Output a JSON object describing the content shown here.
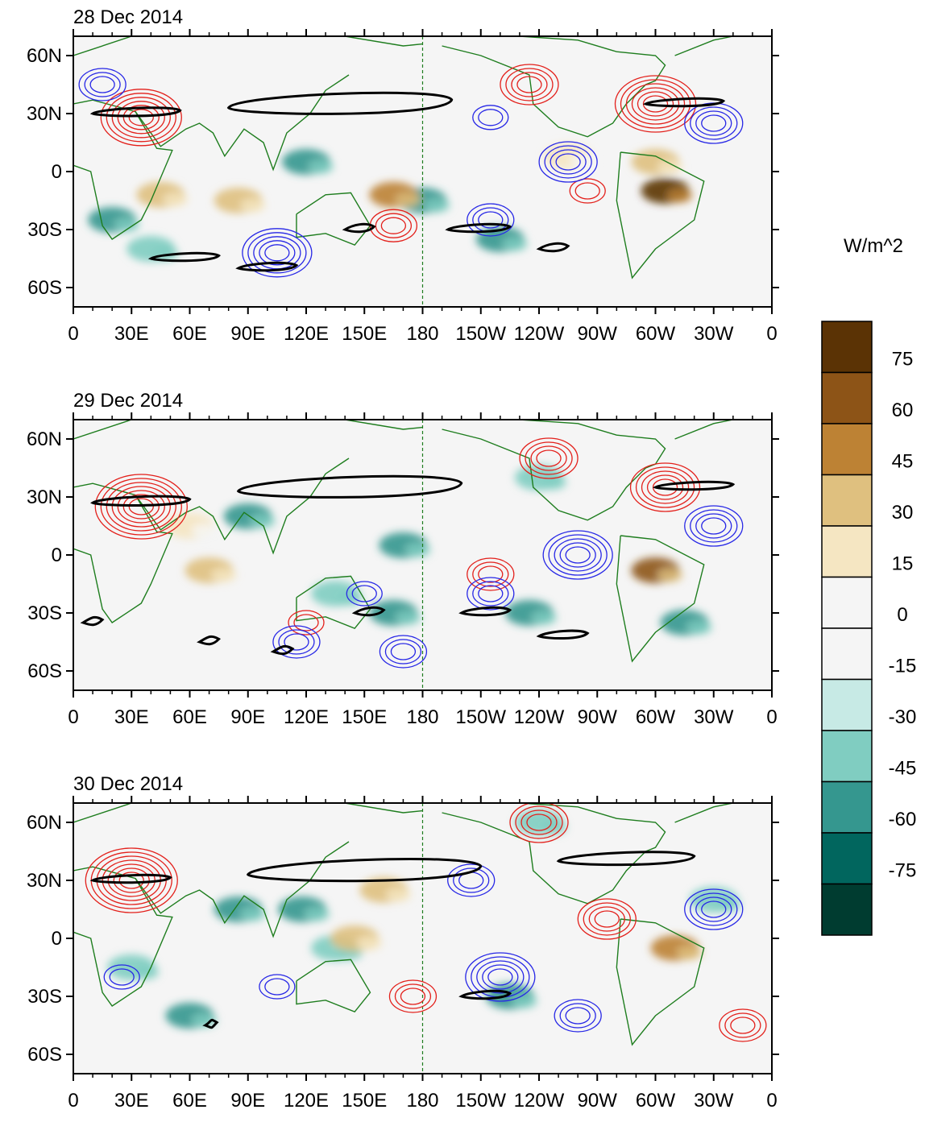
{
  "figure": {
    "units_label": "W/m^2",
    "colorbar": {
      "labels": [
        "75",
        "60",
        "45",
        "30",
        "15",
        "0",
        "-15",
        "-30",
        "-45",
        "-60",
        "-75"
      ],
      "colors": [
        "#5b3305",
        "#8d5417",
        "#bd8234",
        "#dfc07f",
        "#f5e6c2",
        "#f5f5f5",
        "#f5f5f5",
        "#c7eae5",
        "#80cdc1",
        "#35978f",
        "#01665e",
        "#003c30"
      ]
    }
  },
  "axes": {
    "x_ticks": [
      "0",
      "30E",
      "60E",
      "90E",
      "120E",
      "150E",
      "180",
      "150W",
      "120W",
      "90W",
      "60W",
      "30W",
      "0"
    ],
    "y_ticks": [
      "60N",
      "30N",
      "0",
      "30S",
      "60S"
    ]
  },
  "chart_data": [
    {
      "type": "heatmap",
      "title": "28 Dec 2014",
      "xlim": [
        0,
        360
      ],
      "ylim": [
        -70,
        70
      ],
      "fill_anomalies": [
        {
          "lon": 120,
          "lat": 5,
          "value": -60
        },
        {
          "lon": 180,
          "lat": -15,
          "value": -60
        },
        {
          "lon": 220,
          "lat": -35,
          "value": -60
        },
        {
          "lon": 20,
          "lat": -25,
          "value": -60
        },
        {
          "lon": 40,
          "lat": -40,
          "value": -45
        },
        {
          "lon": 85,
          "lat": -15,
          "value": 30
        },
        {
          "lon": 45,
          "lat": -12,
          "value": 30
        },
        {
          "lon": 305,
          "lat": -10,
          "value": 75
        },
        {
          "lon": 300,
          "lat": 5,
          "value": 30
        },
        {
          "lon": 165,
          "lat": -12,
          "value": 45
        },
        {
          "lon": 255,
          "lat": 8,
          "value": 15
        }
      ],
      "contours_positive": [
        {
          "lon": 35,
          "lat": 28,
          "level": 6
        },
        {
          "lon": 300,
          "lat": 35,
          "level": 6
        },
        {
          "lon": 165,
          "lat": -28,
          "level": 3
        },
        {
          "lon": 235,
          "lat": 45,
          "level": 4
        },
        {
          "lon": 265,
          "lat": -10,
          "level": 2
        }
      ],
      "contours_negative": [
        {
          "lon": 105,
          "lat": -42,
          "level": 5
        },
        {
          "lon": 215,
          "lat": -25,
          "level": 3
        },
        {
          "lon": 255,
          "lat": 5,
          "level": 4
        },
        {
          "lon": 330,
          "lat": 25,
          "level": 4
        },
        {
          "lon": 215,
          "lat": 28,
          "level": 2
        },
        {
          "lon": 15,
          "lat": 45,
          "level": 3
        }
      ],
      "thick_outlines": [
        {
          "lon_range": [
            10,
            55
          ],
          "lat": 30
        },
        {
          "lon_range": [
            80,
            195
          ],
          "lat": 33
        },
        {
          "lon_range": [
            295,
            335
          ],
          "lat": 35
        },
        {
          "lon_range": [
            40,
            75
          ],
          "lat": -45
        },
        {
          "lon_range": [
            85,
            115
          ],
          "lat": -50
        },
        {
          "lon_range": [
            140,
            155
          ],
          "lat": -30
        },
        {
          "lon_range": [
            193,
            225
          ],
          "lat": -30
        },
        {
          "lon_range": [
            240,
            255
          ],
          "lat": -40
        }
      ]
    },
    {
      "type": "heatmap",
      "title": "29 Dec 2014",
      "xlim": [
        0,
        360
      ],
      "ylim": [
        -70,
        70
      ],
      "fill_anomalies": [
        {
          "lon": 90,
          "lat": 20,
          "value": -60
        },
        {
          "lon": 170,
          "lat": 5,
          "value": -60
        },
        {
          "lon": 235,
          "lat": -30,
          "value": -60
        },
        {
          "lon": 135,
          "lat": -20,
          "value": -45
        },
        {
          "lon": 165,
          "lat": -30,
          "value": -60
        },
        {
          "lon": 315,
          "lat": -35,
          "value": -60
        },
        {
          "lon": 300,
          "lat": -8,
          "value": 60
        },
        {
          "lon": 70,
          "lat": -8,
          "value": 30
        },
        {
          "lon": 240,
          "lat": 40,
          "value": -45
        },
        {
          "lon": 60,
          "lat": 15,
          "value": 15
        }
      ],
      "contours_positive": [
        {
          "lon": 35,
          "lat": 25,
          "level": 7
        },
        {
          "lon": 305,
          "lat": 35,
          "level": 5
        },
        {
          "lon": 245,
          "lat": 50,
          "level": 4
        },
        {
          "lon": 215,
          "lat": -10,
          "level": 3
        },
        {
          "lon": 120,
          "lat": -35,
          "level": 2
        }
      ],
      "contours_negative": [
        {
          "lon": 260,
          "lat": 0,
          "level": 5
        },
        {
          "lon": 215,
          "lat": -20,
          "level": 3
        },
        {
          "lon": 330,
          "lat": 15,
          "level": 4
        },
        {
          "lon": 115,
          "lat": -45,
          "level": 3
        },
        {
          "lon": 170,
          "lat": -50,
          "level": 3
        },
        {
          "lon": 150,
          "lat": -20,
          "level": 2
        }
      ],
      "thick_outlines": [
        {
          "lon_range": [
            10,
            60
          ],
          "lat": 27
        },
        {
          "lon_range": [
            85,
            200
          ],
          "lat": 33
        },
        {
          "lon_range": [
            300,
            340
          ],
          "lat": 35
        },
        {
          "lon_range": [
            5,
            15
          ],
          "lat": -35
        },
        {
          "lon_range": [
            65,
            75
          ],
          "lat": -45
        },
        {
          "lon_range": [
            103,
            113
          ],
          "lat": -50
        },
        {
          "lon_range": [
            145,
            160
          ],
          "lat": -30
        },
        {
          "lon_range": [
            200,
            225
          ],
          "lat": -30
        },
        {
          "lon_range": [
            240,
            265
          ],
          "lat": -42
        }
      ]
    },
    {
      "type": "heatmap",
      "title": "30 Dec 2014",
      "xlim": [
        0,
        360
      ],
      "ylim": [
        -70,
        70
      ],
      "fill_anomalies": [
        {
          "lon": 85,
          "lat": 15,
          "value": -60
        },
        {
          "lon": 118,
          "lat": 15,
          "value": -60
        },
        {
          "lon": 135,
          "lat": -5,
          "value": -45
        },
        {
          "lon": 225,
          "lat": -30,
          "value": -60
        },
        {
          "lon": 60,
          "lat": -40,
          "value": -60
        },
        {
          "lon": 30,
          "lat": -15,
          "value": -45
        },
        {
          "lon": 310,
          "lat": -5,
          "value": 45
        },
        {
          "lon": 160,
          "lat": 25,
          "value": 30
        },
        {
          "lon": 145,
          "lat": 0,
          "value": 30
        },
        {
          "lon": 240,
          "lat": 60,
          "value": -45
        },
        {
          "lon": 330,
          "lat": 20,
          "value": -45
        }
      ],
      "contours_positive": [
        {
          "lon": 30,
          "lat": 30,
          "level": 7
        },
        {
          "lon": 240,
          "lat": 60,
          "level": 4
        },
        {
          "lon": 275,
          "lat": 10,
          "level": 4
        },
        {
          "lon": 175,
          "lat": -30,
          "level": 3
        },
        {
          "lon": 345,
          "lat": -45,
          "level": 3
        }
      ],
      "contours_negative": [
        {
          "lon": 220,
          "lat": -20,
          "level": 5
        },
        {
          "lon": 260,
          "lat": -40,
          "level": 3
        },
        {
          "lon": 330,
          "lat": 15,
          "level": 4
        },
        {
          "lon": 205,
          "lat": 30,
          "level": 3
        },
        {
          "lon": 105,
          "lat": -25,
          "level": 2
        },
        {
          "lon": 25,
          "lat": -20,
          "level": 2
        }
      ],
      "thick_outlines": [
        {
          "lon_range": [
            10,
            50
          ],
          "lat": 30
        },
        {
          "lon_range": [
            90,
            210
          ],
          "lat": 33
        },
        {
          "lon_range": [
            250,
            320
          ],
          "lat": 40
        },
        {
          "lon_range": [
            200,
            225
          ],
          "lat": -30
        },
        {
          "lon_range": [
            68,
            74
          ],
          "lat": -45
        }
      ]
    }
  ]
}
